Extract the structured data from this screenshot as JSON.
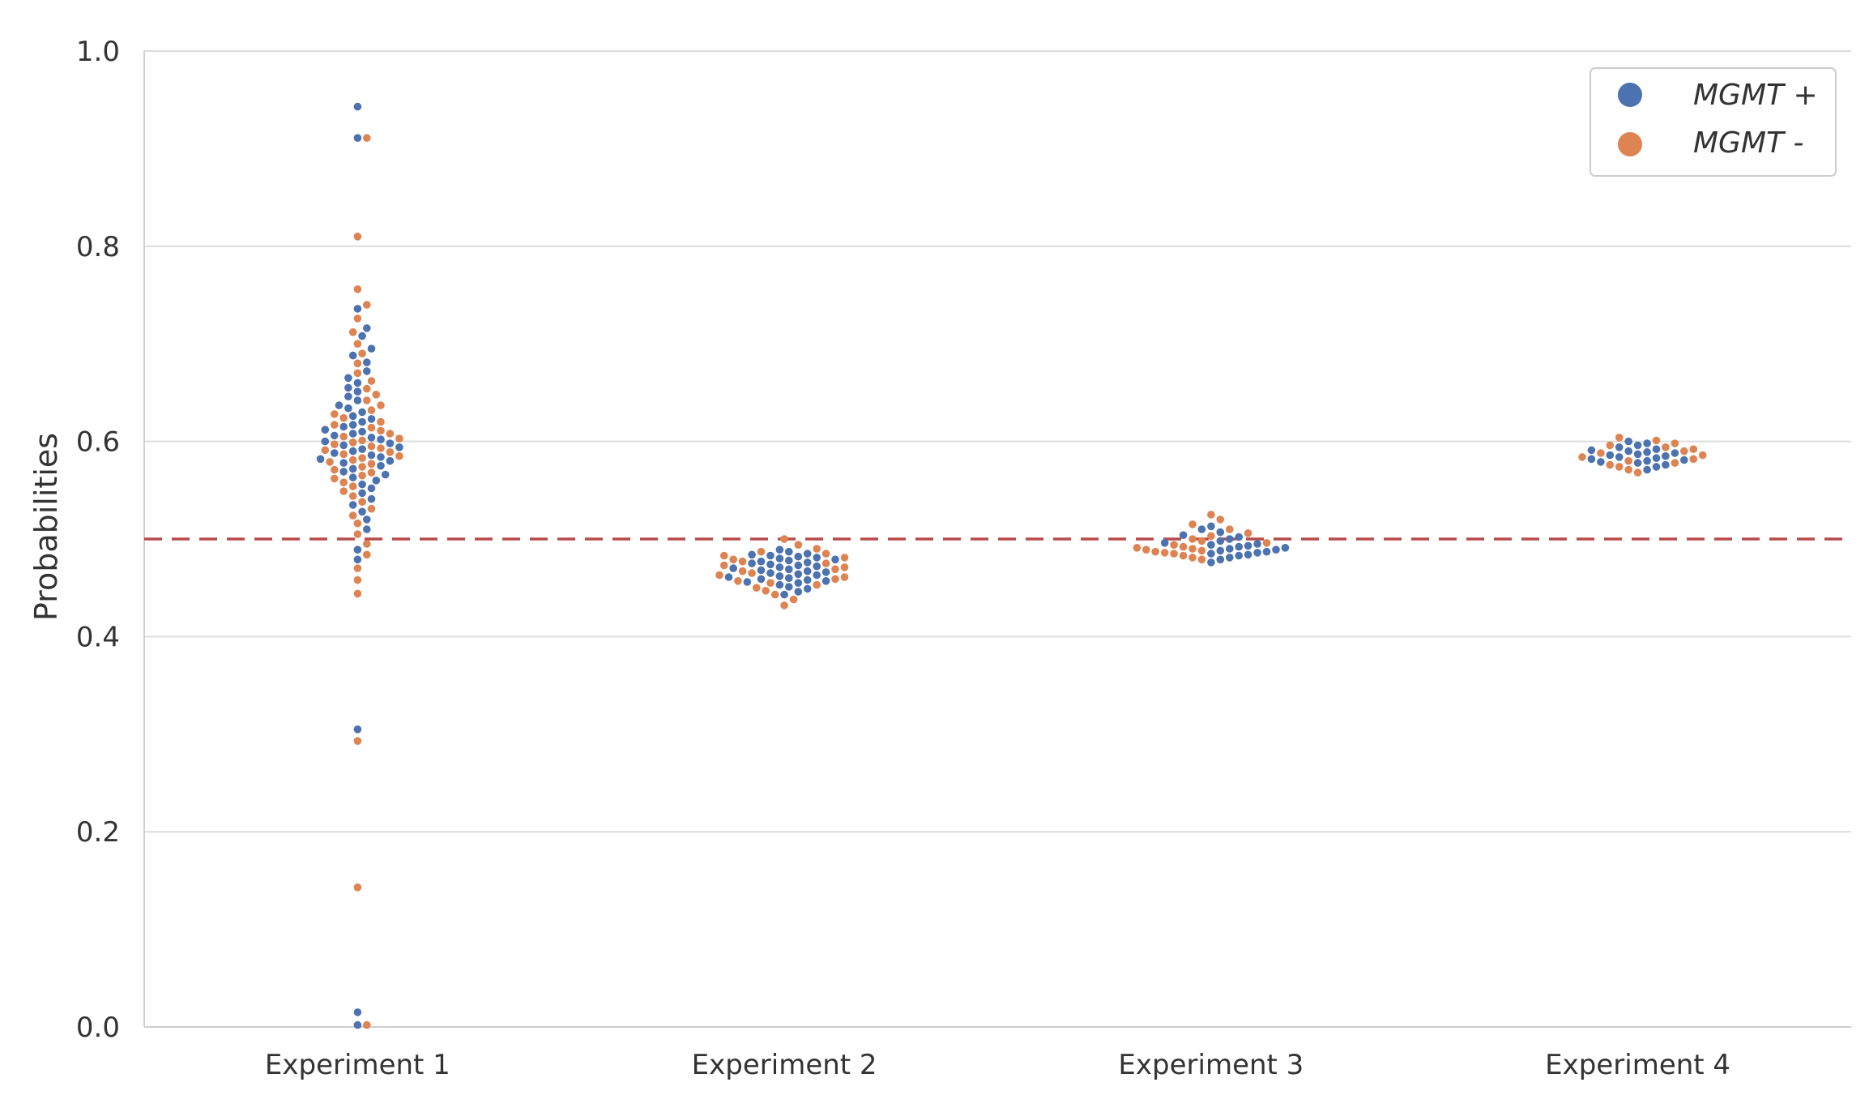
{
  "chart_data": {
    "type": "swarm",
    "title": "",
    "xlabel": "",
    "ylabel": "Probabilities",
    "ylim": [
      0.0,
      1.0
    ],
    "yticks": [
      0.0,
      0.2,
      0.4,
      0.6,
      0.8,
      1.0
    ],
    "ytick_labels": [
      "0.0",
      "0.2",
      "0.4",
      "0.6",
      "0.8",
      "1.0"
    ],
    "categories": [
      "Experiment 1",
      "Experiment 2",
      "Experiment 3",
      "Experiment 4"
    ],
    "threshold": 0.5,
    "grid": "horizontal",
    "legend_position": "top-right",
    "series": [
      {
        "name": "MGMT +",
        "color": "#4c72b0",
        "values": [
          [
            0.943,
            0.911,
            0.736,
            0.716,
            0.708,
            0.695,
            0.688,
            0.681,
            0.672,
            0.665,
            0.66,
            0.655,
            0.651,
            0.646,
            0.642,
            0.637,
            0.634,
            0.63,
            0.626,
            0.623,
            0.62,
            0.617,
            0.615,
            0.612,
            0.61,
            0.608,
            0.606,
            0.604,
            0.602,
            0.6,
            0.598,
            0.596,
            0.594,
            0.592,
            0.59,
            0.588,
            0.586,
            0.584,
            0.582,
            0.58,
            0.578,
            0.575,
            0.572,
            0.569,
            0.566,
            0.563,
            0.56,
            0.556,
            0.552,
            0.547,
            0.541,
            0.535,
            0.528,
            0.52,
            0.51,
            0.489,
            0.479,
            0.305,
            0.015,
            0.002
          ],
          [
            0.489,
            0.487,
            0.485,
            0.484,
            0.483,
            0.482,
            0.481,
            0.48,
            0.479,
            0.478,
            0.477,
            0.476,
            0.475,
            0.474,
            0.473,
            0.472,
            0.471,
            0.47,
            0.469,
            0.468,
            0.467,
            0.466,
            0.465,
            0.464,
            0.463,
            0.462,
            0.461,
            0.46,
            0.459,
            0.458,
            0.457,
            0.456,
            0.455,
            0.453,
            0.451,
            0.449,
            0.446,
            0.443
          ],
          [
            0.513,
            0.51,
            0.507,
            0.504,
            0.502,
            0.5,
            0.498,
            0.496,
            0.495,
            0.494,
            0.493,
            0.492,
            0.491,
            0.49,
            0.489,
            0.488,
            0.487,
            0.486,
            0.485,
            0.484,
            0.483,
            0.481,
            0.479,
            0.476
          ],
          [
            0.6,
            0.598,
            0.596,
            0.594,
            0.592,
            0.591,
            0.59,
            0.589,
            0.588,
            0.587,
            0.586,
            0.585,
            0.584,
            0.583,
            0.582,
            0.581,
            0.58,
            0.579,
            0.578,
            0.576,
            0.574,
            0.571
          ]
        ]
      },
      {
        "name": "MGMT -",
        "color": "#dd8452",
        "values": [
          [
            0.911,
            0.81,
            0.756,
            0.74,
            0.726,
            0.712,
            0.7,
            0.69,
            0.68,
            0.67,
            0.662,
            0.654,
            0.648,
            0.642,
            0.637,
            0.632,
            0.628,
            0.624,
            0.62,
            0.617,
            0.614,
            0.611,
            0.608,
            0.605,
            0.603,
            0.601,
            0.599,
            0.597,
            0.595,
            0.593,
            0.591,
            0.589,
            0.587,
            0.585,
            0.583,
            0.581,
            0.579,
            0.577,
            0.574,
            0.571,
            0.568,
            0.565,
            0.562,
            0.558,
            0.554,
            0.549,
            0.544,
            0.538,
            0.531,
            0.524,
            0.516,
            0.505,
            0.495,
            0.484,
            0.47,
            0.458,
            0.444,
            0.293,
            0.143,
            0.002
          ],
          [
            0.5,
            0.494,
            0.49,
            0.487,
            0.485,
            0.483,
            0.481,
            0.479,
            0.477,
            0.475,
            0.473,
            0.471,
            0.469,
            0.467,
            0.465,
            0.463,
            0.461,
            0.459,
            0.457,
            0.455,
            0.453,
            0.45,
            0.447,
            0.443,
            0.438,
            0.432
          ],
          [
            0.525,
            0.52,
            0.515,
            0.51,
            0.506,
            0.503,
            0.5,
            0.498,
            0.496,
            0.494,
            0.492,
            0.491,
            0.49,
            0.489,
            0.488,
            0.487,
            0.486,
            0.485,
            0.483,
            0.481,
            0.479
          ],
          [
            0.604,
            0.601,
            0.598,
            0.596,
            0.594,
            0.592,
            0.59,
            0.588,
            0.586,
            0.584,
            0.582,
            0.58,
            0.578,
            0.576,
            0.574,
            0.571,
            0.568
          ]
        ]
      }
    ]
  }
}
